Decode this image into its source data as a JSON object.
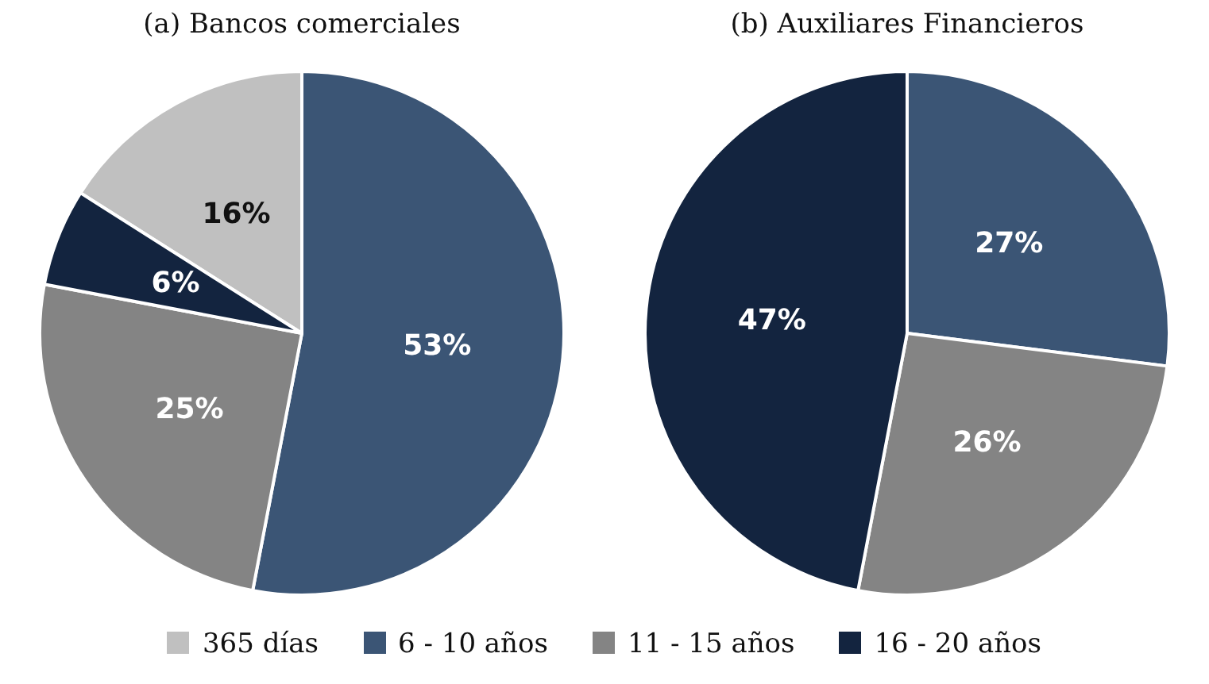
{
  "chart_data": [
    {
      "type": "pie",
      "title": "(a) Bancos comerciales",
      "categories": [
        "365 días",
        "6 - 10 años",
        "11 - 15 años",
        "16 - 20 años"
      ],
      "values": [
        16,
        53,
        25,
        6
      ],
      "value_labels": [
        "16%",
        "53%",
        "25%",
        "6%"
      ],
      "colors": [
        "#c0c0c0",
        "#3b5575",
        "#848484",
        "#13243f"
      ],
      "legend": "bottom"
    },
    {
      "type": "pie",
      "title": "(b) Auxiliares Financieros",
      "categories": [
        null,
        null,
        null
      ],
      "values": [
        27,
        26,
        47
      ],
      "value_labels": [
        "27%",
        "26%",
        "47%"
      ],
      "colors": [
        "#3b5575",
        "#848484",
        "#13243f"
      ]
    }
  ]
}
